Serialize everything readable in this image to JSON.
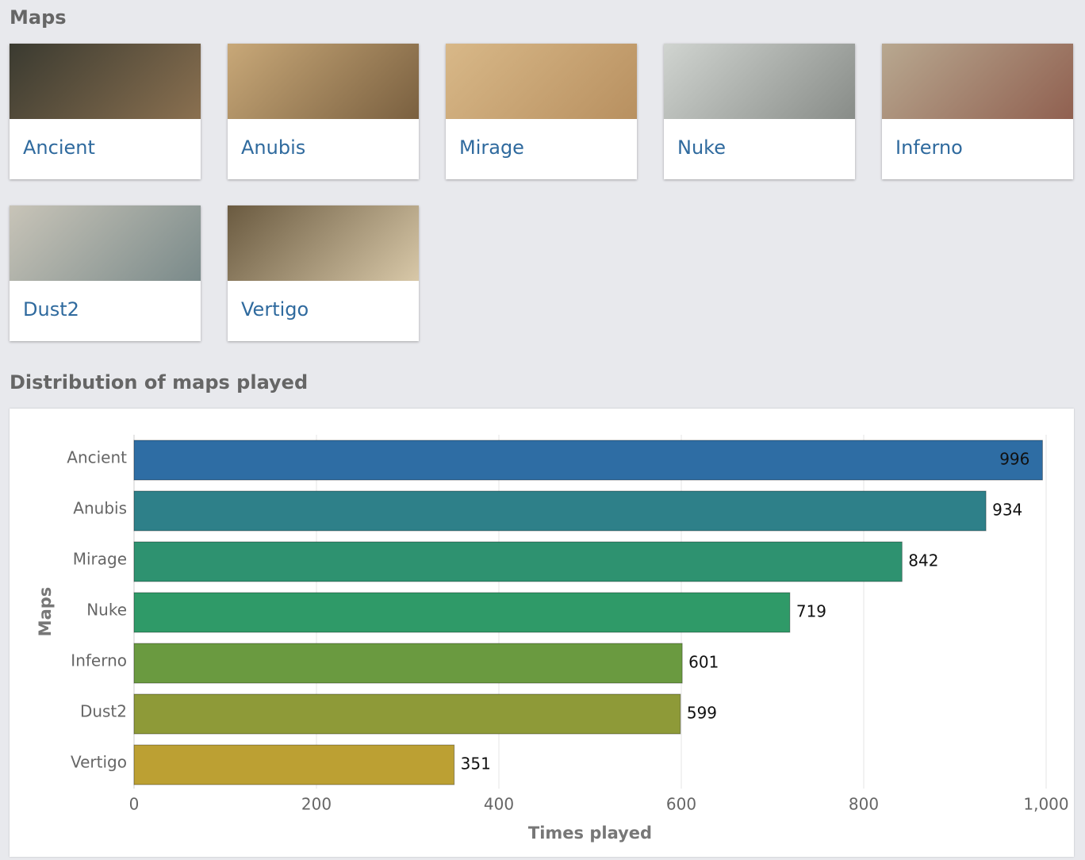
{
  "maps_title": "Maps",
  "maps": [
    "Ancient",
    "Anubis",
    "Mirage",
    "Nuke",
    "Inferno",
    "Dust2",
    "Vertigo"
  ],
  "chart_title": "Distribution of maps played",
  "chart_data": {
    "type": "bar",
    "orientation": "horizontal",
    "categories": [
      "Ancient",
      "Anubis",
      "Mirage",
      "Nuke",
      "Inferno",
      "Dust2",
      "Vertigo"
    ],
    "values": [
      996,
      934,
      842,
      719,
      601,
      599,
      351
    ],
    "colors": [
      "#2e6da4",
      "#2e8089",
      "#2e9270",
      "#2f9a68",
      "#6a9a40",
      "#8e9a38",
      "#bca033"
    ],
    "xlim": [
      0,
      1000
    ],
    "xticks": [
      0,
      200,
      400,
      600,
      800,
      {
        "value": 1000,
        "label": "1,000"
      }
    ],
    "xlabel": "Times played",
    "ylabel": "Maps",
    "grid": true
  }
}
